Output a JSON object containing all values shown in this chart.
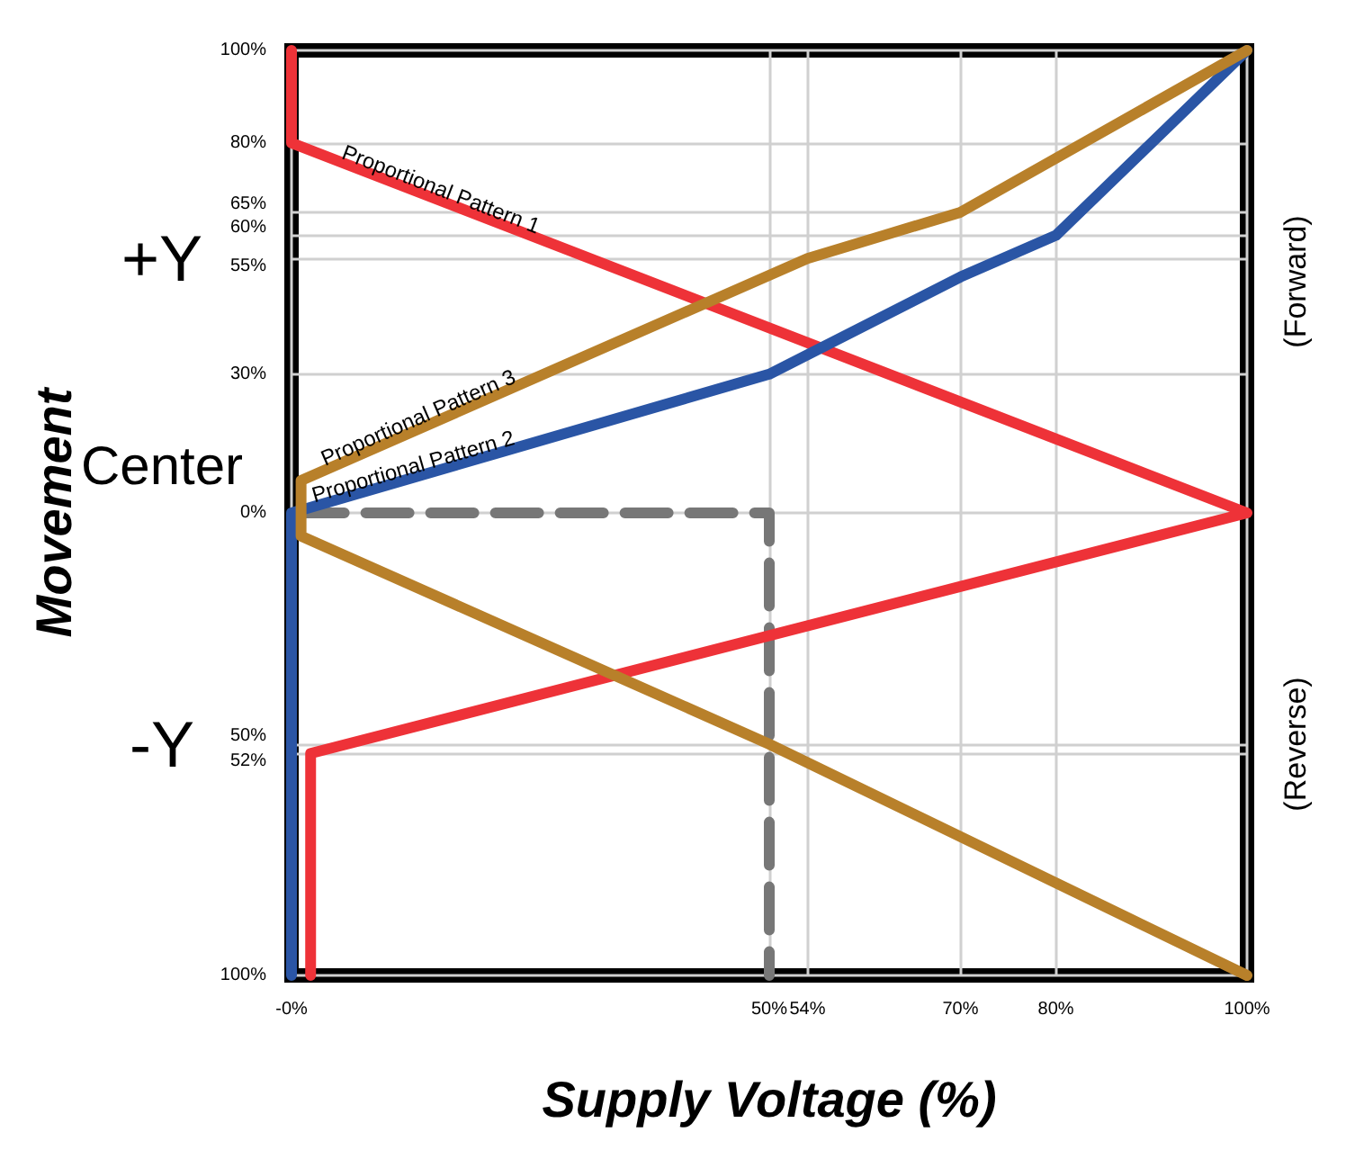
{
  "chart_data": {
    "type": "line",
    "xlabel": "Supply Voltage (%)",
    "ylabel": "Movement",
    "xlim": [
      0,
      100
    ],
    "xticks": [
      {
        "value": 0,
        "label": "-0%"
      },
      {
        "value": 50,
        "label": "50%"
      },
      {
        "value": 54,
        "label": "54%"
      },
      {
        "value": 70,
        "label": "70%"
      },
      {
        "value": 80,
        "label": "80%"
      },
      {
        "value": 100,
        "label": "100%"
      }
    ],
    "ylim": [
      -100,
      100
    ],
    "yticks": [
      {
        "value": -100,
        "label": "100%"
      },
      {
        "value": -52,
        "label": "52%"
      },
      {
        "value": -50,
        "label": "50%"
      },
      {
        "value": 0,
        "label": "0%"
      },
      {
        "value": 30,
        "label": "30%"
      },
      {
        "value": 55,
        "label": "55%"
      },
      {
        "value": 60,
        "label": "60%"
      },
      {
        "value": 65,
        "label": "65%"
      },
      {
        "value": 80,
        "label": "80%"
      },
      {
        "value": 100,
        "label": "100%"
      }
    ],
    "grid": true,
    "legend": false,
    "marker": "none",
    "line_style": "solid",
    "series": [
      {
        "name": "Proportional Pattern 1",
        "color": "#ee3238",
        "x": [
          0,
          0,
          100,
          2,
          2
        ],
        "values": [
          100,
          80,
          0,
          -52,
          -100
        ]
      },
      {
        "name": "Proportional Pattern 2",
        "color": "#2a55a5",
        "x": [
          0,
          0,
          50,
          70,
          80,
          100
        ],
        "values": [
          -100,
          0,
          30,
          51,
          60,
          100
        ]
      },
      {
        "name": "Proportional Pattern 3",
        "color": "#b8802a",
        "x": [
          100,
          70,
          54,
          1,
          1,
          50,
          100
        ],
        "values": [
          100,
          65,
          55,
          7,
          -5,
          -50,
          -100
        ]
      },
      {
        "color": "#777777",
        "line_style": "dashed",
        "x": [
          1,
          50,
          50
        ],
        "values": [
          0,
          0,
          -100
        ]
      }
    ],
    "annotations": [
      "+Y",
      "Center",
      "-Y",
      "(Forward)",
      "(Reverse)"
    ]
  }
}
